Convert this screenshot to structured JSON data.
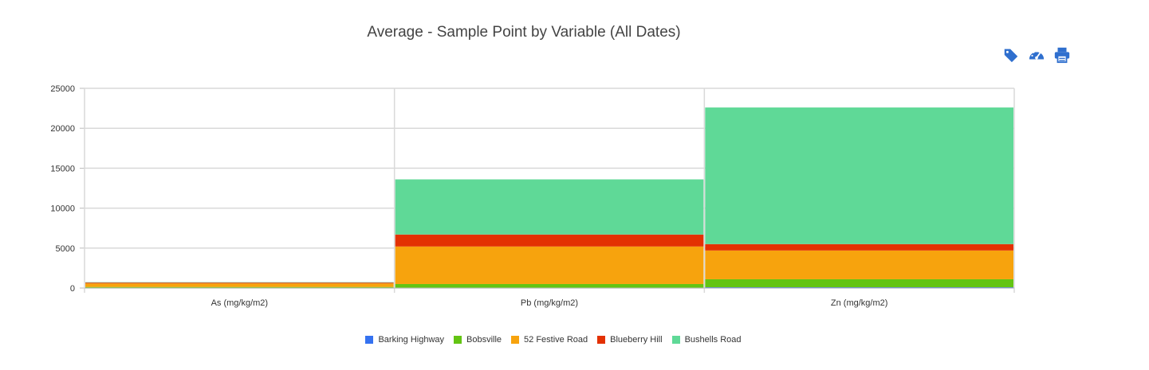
{
  "toolbar": {
    "icons": [
      "tag-icon",
      "dashboard-icon",
      "print-icon"
    ],
    "color": "#2f6fce"
  },
  "chart_data": {
    "type": "bar",
    "stacked": true,
    "title": "Average - Sample Point by Variable (All Dates)",
    "xlabel": "",
    "ylabel": "",
    "categories": [
      "As (mg/kg/m2)",
      "Pb (mg/kg/m2)",
      "Zn (mg/kg/m2)"
    ],
    "ylim": [
      0,
      25000
    ],
    "yticks": [
      0,
      5000,
      10000,
      15000,
      20000,
      25000
    ],
    "grid": true,
    "legend_position": "bottom",
    "series": [
      {
        "name": "Barking Highway",
        "color": "#3572f0",
        "values": [
          30,
          50,
          100
        ]
      },
      {
        "name": "Bobsville",
        "color": "#63c413",
        "values": [
          100,
          450,
          1000
        ]
      },
      {
        "name": "52 Festive Road",
        "color": "#f7a30d",
        "values": [
          450,
          4700,
          3600
        ]
      },
      {
        "name": "Blueberry Hill",
        "color": "#e33102",
        "values": [
          100,
          1500,
          800
        ]
      },
      {
        "name": "Bushells Road",
        "color": "#5fd997",
        "values": [
          50,
          6900,
          17100
        ]
      }
    ]
  }
}
